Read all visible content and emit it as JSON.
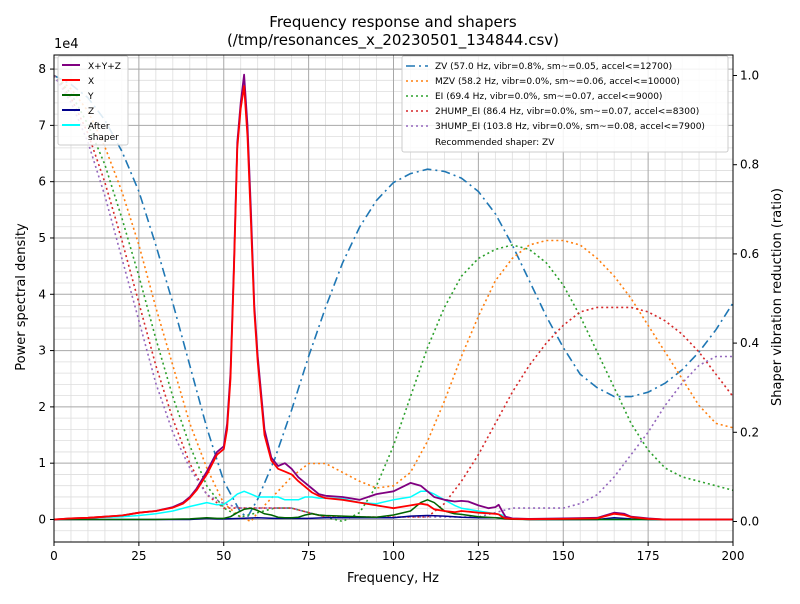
{
  "chart_data": {
    "type": "line",
    "title": "Frequency response and shapers",
    "subtitle": "(/tmp/resonances_x_20230501_134844.csv)",
    "xlabel": "Frequency, Hz",
    "ylabel": "Power spectral density",
    "y2label": "Shaper vibration reduction (ratio)",
    "y_offset_label": "1e4",
    "xlim": [
      0,
      200
    ],
    "ylim": [
      -4000,
      82500
    ],
    "y2lim": [
      -0.046,
      1.046
    ],
    "xticks": [
      "0",
      "25",
      "50",
      "75",
      "100",
      "125",
      "150",
      "175",
      "200"
    ],
    "yticks": [
      "0",
      "1",
      "2",
      "3",
      "4",
      "5",
      "6",
      "7",
      "8"
    ],
    "y2ticks": [
      "0.0",
      "0.2",
      "0.4",
      "0.6",
      "0.8",
      "1.0"
    ],
    "grid": "major and minor",
    "psd_series": [
      {
        "name": "X+Y+Z",
        "color": "#800080",
        "style": "solid",
        "x": [
          0,
          5,
          10,
          15,
          20,
          25,
          30,
          35,
          38,
          40,
          42,
          45,
          48,
          50,
          51,
          52,
          53,
          54,
          55,
          56,
          57,
          58,
          59,
          60,
          62,
          64,
          66,
          68,
          70,
          72,
          74,
          76,
          78,
          80,
          85,
          90,
          95,
          100,
          105,
          108,
          110,
          112,
          115,
          118,
          120,
          122,
          125,
          128,
          130,
          131,
          132,
          133,
          135,
          140,
          150,
          160,
          165,
          168,
          170,
          175,
          180,
          190,
          200
        ],
        "y": [
          0,
          200,
          300,
          500,
          700,
          1200,
          1500,
          2200,
          3000,
          4000,
          5500,
          8500,
          12000,
          13000,
          17000,
          26000,
          45000,
          67000,
          74000,
          79000,
          70000,
          55000,
          38000,
          29000,
          16000,
          11000,
          9500,
          10000,
          9000,
          7500,
          6500,
          5500,
          4500,
          4200,
          4000,
          3500,
          4500,
          5000,
          6500,
          6000,
          5000,
          4000,
          3500,
          3200,
          3300,
          3200,
          2500,
          2000,
          2200,
          2600,
          1500,
          500,
          200,
          100,
          200,
          300,
          1200,
          1000,
          500,
          200,
          0,
          0,
          0
        ],
        "y_fix": [
          0,
          200,
          300,
          500,
          700,
          1200,
          1500,
          2200,
          3000,
          4000,
          5500,
          8500,
          12000,
          13000,
          17000,
          26000,
          45000,
          67000,
          74000,
          79000,
          70000,
          55000,
          38000,
          29000,
          16000,
          11000,
          9500,
          10000,
          9000,
          7500,
          6500,
          5500,
          4500,
          4200,
          4000,
          3500,
          4500,
          5000,
          6500,
          6000,
          5000,
          4000,
          3500,
          3200,
          3300,
          3200,
          2500,
          2000,
          2200,
          2600,
          1500,
          500,
          200,
          100,
          200,
          300,
          1200,
          1000,
          500,
          200,
          0,
          0,
          0
        ]
      },
      {
        "name": "X",
        "color": "#ff0000",
        "style": "solid",
        "x": [
          0,
          5,
          10,
          15,
          20,
          25,
          30,
          35,
          38,
          40,
          42,
          45,
          48,
          50,
          51,
          52,
          53,
          54,
          55,
          56,
          57,
          58,
          59,
          60,
          62,
          64,
          66,
          68,
          70,
          72,
          74,
          76,
          78,
          80,
          85,
          90,
          95,
          100,
          105,
          108,
          110,
          112,
          115,
          118,
          120,
          122,
          125,
          128,
          130,
          131,
          132,
          133,
          135,
          140,
          150,
          160,
          165,
          168,
          170,
          175,
          180,
          190,
          200
        ],
        "y": [
          0,
          200,
          300,
          500,
          700,
          1200,
          1500,
          2100,
          2800,
          3800,
          5200,
          8000,
          11500,
          12500,
          16000,
          25000,
          44000,
          66000,
          73000,
          77000,
          68000,
          53000,
          37000,
          28000,
          15000,
          10500,
          9000,
          8500,
          8000,
          6800,
          5800,
          4800,
          4200,
          3800,
          3500,
          3000,
          2500,
          2000,
          2500,
          2800,
          2600,
          1800,
          1500,
          1300,
          1500,
          1400,
          1200,
          1100,
          1000,
          900,
          500,
          200,
          100,
          50,
          100,
          200,
          1000,
          800,
          400,
          100,
          0,
          0,
          0
        ]
      },
      {
        "name": "Y",
        "color": "#006400",
        "style": "solid",
        "x": [
          0,
          10,
          20,
          30,
          40,
          45,
          48,
          50,
          52,
          54,
          56,
          58,
          60,
          62,
          64,
          66,
          68,
          70,
          72,
          74,
          76,
          78,
          80,
          85,
          90,
          95,
          100,
          105,
          108,
          110,
          112,
          115,
          118,
          120,
          125,
          130,
          132,
          133,
          135,
          140,
          150,
          160,
          170,
          180,
          190,
          200
        ],
        "y": [
          0,
          0,
          0,
          0,
          100,
          300,
          200,
          200,
          500,
          1200,
          1800,
          2000,
          1600,
          1000,
          800,
          400,
          300,
          300,
          400,
          800,
          1000,
          800,
          700,
          600,
          500,
          400,
          800,
          1500,
          3000,
          3500,
          3000,
          1500,
          1000,
          900,
          500,
          300,
          200,
          100,
          50,
          0,
          0,
          0,
          0,
          0,
          0,
          0
        ]
      },
      {
        "name": "Z",
        "color": "#00008b",
        "style": "solid",
        "x": [
          0,
          10,
          20,
          30,
          40,
          45,
          48,
          50,
          55,
          60,
          65,
          70,
          75,
          80,
          85,
          90,
          95,
          100,
          105,
          110,
          115,
          120,
          125,
          130,
          135,
          140,
          150,
          160,
          165,
          170,
          175,
          180,
          190,
          200
        ],
        "y": [
          0,
          0,
          0,
          0,
          0,
          200,
          100,
          100,
          200,
          300,
          200,
          200,
          200,
          300,
          300,
          300,
          300,
          300,
          600,
          700,
          600,
          400,
          300,
          300,
          100,
          0,
          0,
          0,
          300,
          100,
          0,
          0,
          0,
          0
        ]
      },
      {
        "name": "After\nshaper",
        "color": "#00ffff",
        "style": "solid",
        "x": [
          0,
          5,
          10,
          15,
          20,
          25,
          30,
          35,
          40,
          45,
          48,
          50,
          52,
          54,
          56,
          58,
          60,
          62,
          64,
          66,
          68,
          70,
          72,
          74,
          76,
          78,
          80,
          85,
          90,
          95,
          100,
          105,
          108,
          110,
          112,
          115,
          118,
          120,
          125,
          130,
          132,
          133,
          135,
          140,
          150,
          160,
          170,
          180,
          190,
          200
        ],
        "y": [
          0,
          100,
          300,
          400,
          500,
          700,
          1000,
          1500,
          2300,
          3000,
          2600,
          2700,
          3500,
          4500,
          5000,
          4500,
          4000,
          4000,
          4000,
          4000,
          3500,
          3500,
          3500,
          4000,
          4000,
          3800,
          3800,
          3700,
          3000,
          2800,
          3500,
          4000,
          5000,
          5000,
          4500,
          3500,
          2500,
          2000,
          1500,
          1000,
          800,
          300,
          100,
          0,
          0,
          0,
          0,
          0,
          0,
          0
        ]
      }
    ],
    "shaper_series": [
      {
        "name": "ZV (57.0 Hz, vibr=0.8%, sm~=0.05, accel<=12700)",
        "color": "#1f77b4",
        "style": "dashdot",
        "x": [
          0,
          5,
          10,
          15,
          20,
          25,
          30,
          35,
          40,
          45,
          50,
          55,
          57,
          60,
          65,
          70,
          75,
          80,
          85,
          90,
          95,
          100,
          105,
          110,
          115,
          120,
          125,
          130,
          135,
          140,
          145,
          150,
          155,
          160,
          165,
          170,
          175,
          180,
          185,
          190,
          195,
          200
        ],
        "y": [
          1.0,
          0.98,
          0.95,
          0.9,
          0.83,
          0.74,
          0.62,
          0.49,
          0.35,
          0.21,
          0.09,
          0.02,
          0.01,
          0.05,
          0.14,
          0.25,
          0.37,
          0.48,
          0.58,
          0.66,
          0.72,
          0.76,
          0.78,
          0.79,
          0.785,
          0.77,
          0.74,
          0.69,
          0.62,
          0.54,
          0.46,
          0.39,
          0.33,
          0.3,
          0.28,
          0.28,
          0.29,
          0.31,
          0.34,
          0.38,
          0.43,
          0.49
        ]
      },
      {
        "name": "MZV (58.2 Hz, vibr=0.0%, sm~=0.06, accel<=10000)",
        "color": "#ff7f0e",
        "style": "dotted",
        "x": [
          0,
          5,
          10,
          15,
          20,
          25,
          30,
          35,
          40,
          45,
          50,
          55,
          58,
          60,
          65,
          70,
          75,
          80,
          85,
          90,
          95,
          100,
          105,
          110,
          115,
          120,
          125,
          130,
          135,
          140,
          145,
          150,
          155,
          160,
          165,
          170,
          175,
          180,
          185,
          190,
          195,
          200
        ],
        "y": [
          1.0,
          0.97,
          0.92,
          0.84,
          0.74,
          0.62,
          0.48,
          0.35,
          0.22,
          0.12,
          0.04,
          0.01,
          0.0,
          0.02,
          0.06,
          0.1,
          0.13,
          0.13,
          0.11,
          0.09,
          0.075,
          0.08,
          0.11,
          0.18,
          0.27,
          0.37,
          0.46,
          0.54,
          0.59,
          0.62,
          0.63,
          0.63,
          0.62,
          0.59,
          0.55,
          0.5,
          0.44,
          0.38,
          0.32,
          0.26,
          0.22,
          0.21
        ]
      },
      {
        "name": "EI (69.4 Hz, vibr=0.0%, sm~=0.07, accel<=9000)",
        "color": "#2ca02c",
        "style": "dotted",
        "x": [
          0,
          5,
          10,
          15,
          20,
          25,
          30,
          35,
          40,
          45,
          50,
          55,
          60,
          65,
          70,
          75,
          80,
          85,
          90,
          95,
          100,
          105,
          110,
          115,
          120,
          125,
          130,
          135,
          140,
          145,
          150,
          155,
          160,
          165,
          170,
          175,
          180,
          185,
          190,
          195,
          200
        ],
        "y": [
          1.0,
          0.96,
          0.89,
          0.8,
          0.68,
          0.55,
          0.41,
          0.28,
          0.17,
          0.08,
          0.03,
          0.01,
          0.02,
          0.03,
          0.03,
          0.02,
          0.01,
          0.0,
          0.02,
          0.08,
          0.17,
          0.28,
          0.39,
          0.48,
          0.55,
          0.59,
          0.61,
          0.62,
          0.61,
          0.58,
          0.53,
          0.46,
          0.38,
          0.3,
          0.22,
          0.16,
          0.12,
          0.1,
          0.09,
          0.08,
          0.07
        ]
      },
      {
        "name": "2HUMP_EI (86.4 Hz, vibr=0.0%, sm~=0.07, accel<=8300)",
        "color": "#d62728",
        "style": "dotted",
        "x": [
          0,
          5,
          10,
          15,
          20,
          25,
          30,
          35,
          40,
          45,
          50,
          55,
          60,
          65,
          70,
          75,
          80,
          85,
          90,
          95,
          100,
          105,
          110,
          115,
          120,
          125,
          130,
          135,
          140,
          145,
          150,
          155,
          160,
          165,
          170,
          175,
          180,
          185,
          190,
          195,
          200
        ],
        "y": [
          1.0,
          0.95,
          0.87,
          0.76,
          0.63,
          0.49,
          0.35,
          0.23,
          0.13,
          0.06,
          0.03,
          0.03,
          0.03,
          0.03,
          0.03,
          0.02,
          0.01,
          0.01,
          0.01,
          0.01,
          0.01,
          0.01,
          0.01,
          0.04,
          0.09,
          0.15,
          0.22,
          0.29,
          0.35,
          0.4,
          0.44,
          0.47,
          0.48,
          0.48,
          0.48,
          0.47,
          0.45,
          0.42,
          0.38,
          0.33,
          0.28
        ]
      },
      {
        "name": "3HUMP_EI (103.8 Hz, vibr=0.0%, sm~=0.08, accel<=7900)",
        "color": "#9467bd",
        "style": "dotted",
        "x": [
          0,
          5,
          10,
          15,
          20,
          25,
          30,
          35,
          40,
          45,
          50,
          55,
          60,
          65,
          70,
          75,
          80,
          85,
          90,
          95,
          100,
          105,
          110,
          115,
          120,
          125,
          130,
          135,
          140,
          145,
          150,
          155,
          160,
          165,
          170,
          175,
          180,
          185,
          190,
          195,
          200
        ],
        "y": [
          1.0,
          0.94,
          0.85,
          0.73,
          0.59,
          0.45,
          0.31,
          0.2,
          0.12,
          0.06,
          0.04,
          0.03,
          0.03,
          0.03,
          0.03,
          0.02,
          0.01,
          0.01,
          0.01,
          0.01,
          0.01,
          0.01,
          0.01,
          0.01,
          0.01,
          0.01,
          0.02,
          0.03,
          0.03,
          0.03,
          0.03,
          0.04,
          0.06,
          0.1,
          0.15,
          0.2,
          0.26,
          0.31,
          0.35,
          0.37,
          0.37
        ]
      }
    ],
    "legend_left": [
      "X+Y+Z",
      "X",
      "Y",
      "Z",
      "After\nshaper"
    ],
    "legend_right_note": "Recommended shaper: ZV",
    "legend_placement": [
      "upper-left",
      "upper-right"
    ]
  }
}
